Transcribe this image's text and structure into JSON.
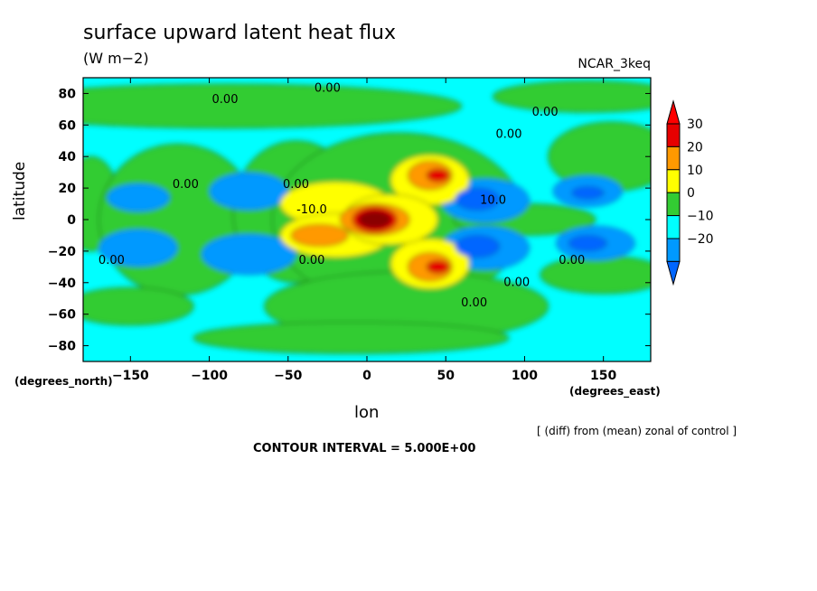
{
  "chart_data": {
    "type": "heatmap",
    "title": "surface upward latent heat flux",
    "units": "(W m−2)",
    "model": "NCAR_3keq",
    "xlabel": "lon",
    "ylabel": "latitude",
    "x_unit": "(degrees_east)",
    "y_unit": "(degrees_north)",
    "xlim": [
      -180,
      180
    ],
    "ylim": [
      -90,
      90
    ],
    "x_ticks": [
      -150,
      -100,
      -50,
      0,
      50,
      100,
      150
    ],
    "y_ticks": [
      80,
      60,
      40,
      20,
      0,
      -20,
      -40,
      -60,
      -80
    ],
    "x_tick_labels": [
      "−150",
      "−100",
      "−50",
      "0",
      "50",
      "100",
      "150"
    ],
    "y_tick_labels": [
      "80",
      "60",
      "40",
      "20",
      "0",
      "−20",
      "−40",
      "−60",
      "−80"
    ],
    "note": "[ (diff) from (mean) zonal of control ]",
    "contour_interval": "CONTOUR INTERVAL = 5.000E+00",
    "colorbar": {
      "levels": [
        30,
        20,
        10,
        0,
        -10,
        -20
      ],
      "labels": [
        "30",
        "20",
        "10",
        "0",
        "−10",
        "−20"
      ],
      "colors": [
        "#e60000",
        "#ff9900",
        "#ffff00",
        "#33cc33",
        "#00ffff",
        "#0099ff"
      ],
      "extend_top": "#ff0000",
      "extend_bottom": "#0066ff"
    },
    "field": {
      "background": "#00ffff",
      "features": [
        {
          "kind": "green",
          "lon": -90,
          "lat": 72,
          "rlon": 150,
          "rlat": 14
        },
        {
          "kind": "green",
          "lon": 140,
          "lat": 78,
          "rlon": 60,
          "rlat": 10
        },
        {
          "kind": "green",
          "lon": -175,
          "lat": 10,
          "rlon": 18,
          "rlat": 30
        },
        {
          "kind": "green",
          "lon": -120,
          "lat": 0,
          "rlon": 50,
          "rlat": 48
        },
        {
          "kind": "green",
          "lon": -45,
          "lat": 5,
          "rlon": 40,
          "rlat": 45
        },
        {
          "kind": "green",
          "lon": 20,
          "lat": 0,
          "rlon": 80,
          "rlat": 55
        },
        {
          "kind": "green",
          "lon": 25,
          "lat": -55,
          "rlon": 90,
          "rlat": 22
        },
        {
          "kind": "green",
          "lon": 100,
          "lat": 0,
          "rlon": 45,
          "rlat": 10
        },
        {
          "kind": "green",
          "lon": 155,
          "lat": 40,
          "rlon": 40,
          "rlat": 22
        },
        {
          "kind": "green",
          "lon": 150,
          "lat": -35,
          "rlon": 40,
          "rlat": 12
        },
        {
          "kind": "green",
          "lon": -150,
          "lat": -55,
          "rlon": 40,
          "rlat": 12
        },
        {
          "kind": "green",
          "lon": -10,
          "lat": -75,
          "rlon": 100,
          "rlat": 10
        },
        {
          "kind": "neg10",
          "lon": -145,
          "lat": 14,
          "rlon": 20,
          "rlat": 9
        },
        {
          "kind": "neg10",
          "lon": -145,
          "lat": -18,
          "rlon": 25,
          "rlat": 12
        },
        {
          "kind": "neg10",
          "lon": -75,
          "lat": 18,
          "rlon": 25,
          "rlat": 12
        },
        {
          "kind": "neg10",
          "lon": -75,
          "lat": -22,
          "rlon": 30,
          "rlat": 13
        },
        {
          "kind": "neg10",
          "lon": 75,
          "lat": 12,
          "rlon": 28,
          "rlat": 14
        },
        {
          "kind": "neg10",
          "lon": 75,
          "lat": -18,
          "rlon": 28,
          "rlat": 14
        },
        {
          "kind": "neg10",
          "lon": 140,
          "lat": 18,
          "rlon": 22,
          "rlat": 10
        },
        {
          "kind": "neg10",
          "lon": 145,
          "lat": -15,
          "rlon": 25,
          "rlat": 11
        },
        {
          "kind": "pos10",
          "lon": -20,
          "lat": 10,
          "rlon": 35,
          "rlat": 14
        },
        {
          "kind": "pos10",
          "lon": -20,
          "lat": -10,
          "rlon": 35,
          "rlat": 14
        },
        {
          "kind": "pos10",
          "lon": 40,
          "lat": 25,
          "rlon": 25,
          "rlat": 16
        },
        {
          "kind": "pos10",
          "lon": 40,
          "lat": -28,
          "rlon": 25,
          "rlat": 16
        },
        {
          "kind": "pos10",
          "lon": 15,
          "lat": 0,
          "rlon": 30,
          "rlat": 16
        },
        {
          "kind": "pos20",
          "lon": -30,
          "lat": -10,
          "rlon": 18,
          "rlat": 7
        },
        {
          "kind": "pos20",
          "lon": 40,
          "lat": 28,
          "rlon": 14,
          "rlat": 9
        },
        {
          "kind": "pos20",
          "lon": 40,
          "lat": -30,
          "rlon": 14,
          "rlat": 9
        },
        {
          "kind": "pos20",
          "lon": 5,
          "lat": 0,
          "rlon": 22,
          "rlat": 10
        },
        {
          "kind": "pos30",
          "lon": 45,
          "lat": 28,
          "rlon": 7,
          "rlat": 4
        },
        {
          "kind": "pos30",
          "lon": 45,
          "lat": -30,
          "rlon": 7,
          "rlat": 4
        },
        {
          "kind": "pos30",
          "lon": 5,
          "lat": 0,
          "rlon": 14,
          "rlat": 8
        },
        {
          "kind": "max",
          "lon": 5,
          "lat": 0,
          "rlon": 10,
          "rlat": 5
        },
        {
          "kind": "neg20",
          "lon": 70,
          "lat": 13,
          "rlon": 14,
          "rlat": 7
        },
        {
          "kind": "neg20",
          "lon": 70,
          "lat": -17,
          "rlon": 14,
          "rlat": 7
        },
        {
          "kind": "neg20",
          "lon": 140,
          "lat": -15,
          "rlon": 12,
          "rlat": 5
        },
        {
          "kind": "neg20",
          "lon": 140,
          "lat": 17,
          "rlon": 10,
          "rlat": 4
        }
      ]
    },
    "contour_labels": [
      {
        "text": "0.00",
        "lon": -90,
        "lat": 74
      },
      {
        "text": "0.00",
        "lon": -25,
        "lat": 81
      },
      {
        "text": "0.00",
        "lon": 113,
        "lat": 66
      },
      {
        "text": "0.00",
        "lon": 90,
        "lat": 52
      },
      {
        "text": "0.00",
        "lon": -115,
        "lat": 20
      },
      {
        "text": "0.00",
        "lon": -45,
        "lat": 20
      },
      {
        "text": "-10.0",
        "lon": -35,
        "lat": 4
      },
      {
        "text": "10.0",
        "lon": 80,
        "lat": 10
      },
      {
        "text": "0.00",
        "lon": -162,
        "lat": -28
      },
      {
        "text": "0.00",
        "lon": -35,
        "lat": -28
      },
      {
        "text": "0.00",
        "lon": 130,
        "lat": -28
      },
      {
        "text": "0.00",
        "lon": 95,
        "lat": -42
      },
      {
        "text": "0.00",
        "lon": 68,
        "lat": -55
      }
    ]
  }
}
